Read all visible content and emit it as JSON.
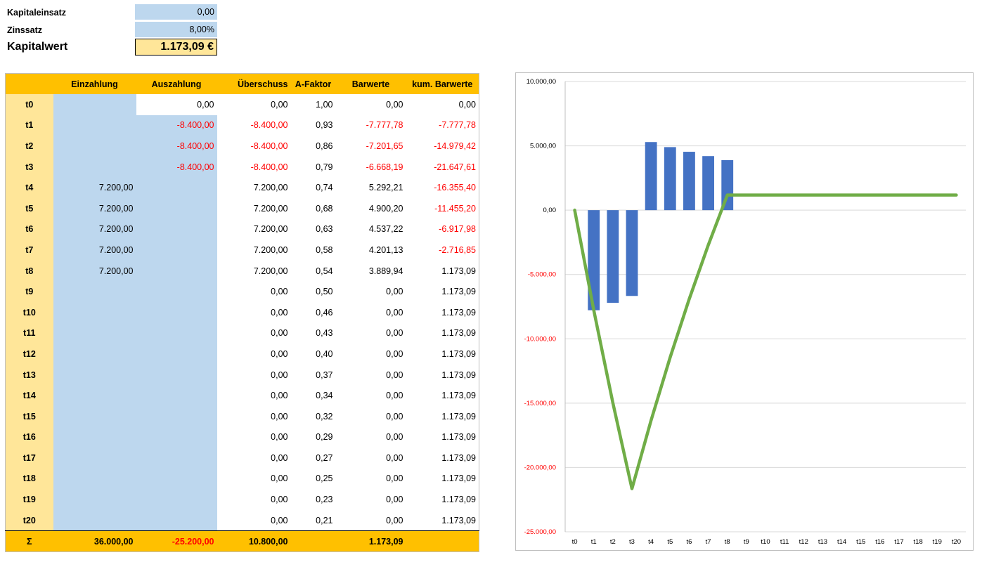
{
  "params": {
    "kapitaleinsatz_label": "Kapitaleinsatz",
    "kapitaleinsatz_value": "0,00",
    "zinssatz_label": "Zinssatz",
    "zinssatz_value": "8,00%",
    "kapitalwert_label": "Kapitalwert",
    "kapitalwert_value": "1.173,09 €"
  },
  "table": {
    "headers": [
      "",
      "Einzahlung",
      "Auszahlung",
      "Überschuss",
      "A-Faktor",
      "Barwerte",
      "kum. Barwerte"
    ],
    "rows": [
      [
        "t0",
        "",
        "0,00",
        "0,00",
        "1,00",
        "0,00",
        "0,00"
      ],
      [
        "t1",
        "",
        "-8.400,00",
        "-8.400,00",
        "0,93",
        "-7.777,78",
        "-7.777,78"
      ],
      [
        "t2",
        "",
        "-8.400,00",
        "-8.400,00",
        "0,86",
        "-7.201,65",
        "-14.979,42"
      ],
      [
        "t3",
        "",
        "-8.400,00",
        "-8.400,00",
        "0,79",
        "-6.668,19",
        "-21.647,61"
      ],
      [
        "t4",
        "7.200,00",
        "",
        "7.200,00",
        "0,74",
        "5.292,21",
        "-16.355,40"
      ],
      [
        "t5",
        "7.200,00",
        "",
        "7.200,00",
        "0,68",
        "4.900,20",
        "-11.455,20"
      ],
      [
        "t6",
        "7.200,00",
        "",
        "7.200,00",
        "0,63",
        "4.537,22",
        "-6.917,98"
      ],
      [
        "t7",
        "7.200,00",
        "",
        "7.200,00",
        "0,58",
        "4.201,13",
        "-2.716,85"
      ],
      [
        "t8",
        "7.200,00",
        "",
        "7.200,00",
        "0,54",
        "3.889,94",
        "1.173,09"
      ],
      [
        "t9",
        "",
        "",
        "0,00",
        "0,50",
        "0,00",
        "1.173,09"
      ],
      [
        "t10",
        "",
        "",
        "0,00",
        "0,46",
        "0,00",
        "1.173,09"
      ],
      [
        "t11",
        "",
        "",
        "0,00",
        "0,43",
        "0,00",
        "1.173,09"
      ],
      [
        "t12",
        "",
        "",
        "0,00",
        "0,40",
        "0,00",
        "1.173,09"
      ],
      [
        "t13",
        "",
        "",
        "0,00",
        "0,37",
        "0,00",
        "1.173,09"
      ],
      [
        "t14",
        "",
        "",
        "0,00",
        "0,34",
        "0,00",
        "1.173,09"
      ],
      [
        "t15",
        "",
        "",
        "0,00",
        "0,32",
        "0,00",
        "1.173,09"
      ],
      [
        "t16",
        "",
        "",
        "0,00",
        "0,29",
        "0,00",
        "1.173,09"
      ],
      [
        "t17",
        "",
        "",
        "0,00",
        "0,27",
        "0,00",
        "1.173,09"
      ],
      [
        "t18",
        "",
        "",
        "0,00",
        "0,25",
        "0,00",
        "1.173,09"
      ],
      [
        "t19",
        "",
        "",
        "0,00",
        "0,23",
        "0,00",
        "1.173,09"
      ],
      [
        "t20",
        "",
        "",
        "0,00",
        "0,21",
        "0,00",
        "1.173,09"
      ]
    ],
    "sum_row": [
      "Σ",
      "36.000,00",
      "-25.200,00",
      "10.800,00",
      "",
      "1.173,09",
      ""
    ]
  },
  "colors": {
    "header_orange": "#ffc000",
    "period_yellow": "#ffe699",
    "input_blue": "#bdd7ee",
    "negative_red": "#ff0000",
    "bar_blue": "#4472c4",
    "line_green": "#70ad47"
  },
  "chart_data": {
    "type": "bar",
    "categories": [
      "t0",
      "t1",
      "t2",
      "t3",
      "t4",
      "t5",
      "t6",
      "t7",
      "t8",
      "t9",
      "t10",
      "t11",
      "t12",
      "t13",
      "t14",
      "t15",
      "t16",
      "t17",
      "t18",
      "t19",
      "t20"
    ],
    "series": [
      {
        "type": "bar",
        "color": "#4472c4",
        "values": [
          0,
          -7777.78,
          -7201.65,
          -6668.19,
          5292.21,
          4900.2,
          4537.22,
          4201.13,
          3889.94,
          0,
          0,
          0,
          0,
          0,
          0,
          0,
          0,
          0,
          0,
          0,
          0
        ]
      },
      {
        "type": "line",
        "color": "#70ad47",
        "values": [
          0,
          -7777.78,
          -14979.42,
          -21647.61,
          -16355.4,
          -11455.2,
          -6917.98,
          -2716.85,
          1173.09,
          1173.09,
          1173.09,
          1173.09,
          1173.09,
          1173.09,
          1173.09,
          1173.09,
          1173.09,
          1173.09,
          1173.09,
          1173.09,
          1173.09
        ]
      }
    ],
    "yticks": [
      "10.000,00",
      "5.000,00",
      "0,00",
      "-5.000,00",
      "-10.000,00",
      "-15.000,00",
      "-20.000,00",
      "-25.000,00"
    ],
    "ylim": [
      -25000,
      10000
    ],
    "grid": true
  }
}
